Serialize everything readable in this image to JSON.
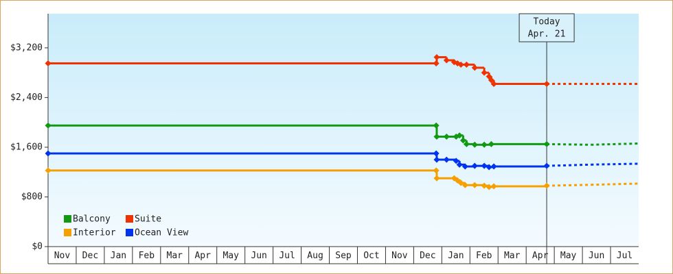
{
  "chart_data": {
    "type": "step-line",
    "xlim": [
      0,
      21
    ],
    "xticks": [
      {
        "value": 0,
        "label": "Nov"
      },
      {
        "value": 1,
        "label": "Dec"
      },
      {
        "value": 2,
        "label": "Jan"
      },
      {
        "value": 3,
        "label": "Feb"
      },
      {
        "value": 4,
        "label": "Mar"
      },
      {
        "value": 5,
        "label": "Apr"
      },
      {
        "value": 6,
        "label": "May"
      },
      {
        "value": 7,
        "label": "Jun"
      },
      {
        "value": 8,
        "label": "Jul"
      },
      {
        "value": 9,
        "label": "Aug"
      },
      {
        "value": 10,
        "label": "Sep"
      },
      {
        "value": 11,
        "label": "Oct"
      },
      {
        "value": 12,
        "label": "Nov"
      },
      {
        "value": 13,
        "label": "Dec"
      },
      {
        "value": 14,
        "label": "Jan"
      },
      {
        "value": 15,
        "label": "Feb"
      },
      {
        "value": 16,
        "label": "Mar"
      },
      {
        "value": 17,
        "label": "Apr"
      },
      {
        "value": 18,
        "label": "May"
      },
      {
        "value": 19,
        "label": "Jun"
      },
      {
        "value": 20,
        "label": "Jul"
      }
    ],
    "ylim": [
      0,
      3750
    ],
    "yticks": [
      {
        "value": 0,
        "label": "$0"
      },
      {
        "value": 800,
        "label": "$800"
      },
      {
        "value": 1600,
        "label": "$1,600"
      },
      {
        "value": 2400,
        "label": "$2,400"
      },
      {
        "value": 3200,
        "label": "$3,200"
      }
    ],
    "annotation": {
      "lines": [
        "Today",
        "Apr. 21"
      ],
      "x": 17.73
    },
    "legend": "lower left",
    "series": [
      {
        "name": "Balcony",
        "color": "#119911",
        "x": [
          0,
          13.8,
          13.82,
          14.17,
          14.51,
          14.63,
          14.76,
          14.88,
          15.17,
          15.51,
          15.76,
          17.73
        ],
        "values": [
          1950,
          1950,
          1770,
          1770,
          1770,
          1790,
          1710,
          1650,
          1640,
          1640,
          1650,
          1650
        ],
        "forecast": {
          "x": [
            17.73,
            19.3,
            21
          ],
          "values": [
            1650,
            1640,
            1660
          ]
        }
      },
      {
        "name": "Suite",
        "color": "#ee3300",
        "x": [
          0,
          13.8,
          13.82,
          14.17,
          14.44,
          14.56,
          14.68,
          14.88,
          15.17,
          15.51,
          15.68,
          15.76,
          15.85,
          17.73
        ],
        "values": [
          2950,
          2950,
          3050,
          3000,
          2970,
          2950,
          2930,
          2930,
          2880,
          2800,
          2740,
          2680,
          2620,
          2620
        ],
        "forecast": {
          "x": [
            17.73,
            21
          ],
          "values": [
            2620,
            2620
          ]
        }
      },
      {
        "name": "Interior",
        "color": "#f5a000",
        "x": [
          0,
          13.8,
          13.82,
          14.44,
          14.56,
          14.68,
          14.83,
          15.17,
          15.51,
          15.68,
          15.85,
          17.73
        ],
        "values": [
          1225,
          1225,
          1100,
          1100,
          1065,
          1025,
          990,
          990,
          980,
          960,
          970,
          980
        ],
        "forecast": {
          "x": [
            17.73,
            19.3,
            21
          ],
          "values": [
            980,
            995,
            1015
          ]
        }
      },
      {
        "name": "Ocean View",
        "color": "#0033ee",
        "x": [
          0,
          13.8,
          13.82,
          14.17,
          14.51,
          14.63,
          14.83,
          15.17,
          15.51,
          15.68,
          15.85,
          17.73
        ],
        "values": [
          1500,
          1500,
          1400,
          1400,
          1380,
          1320,
          1290,
          1300,
          1300,
          1280,
          1290,
          1300
        ],
        "forecast": {
          "x": [
            17.73,
            19.3,
            21
          ],
          "values": [
            1300,
            1320,
            1335
          ]
        }
      }
    ]
  }
}
